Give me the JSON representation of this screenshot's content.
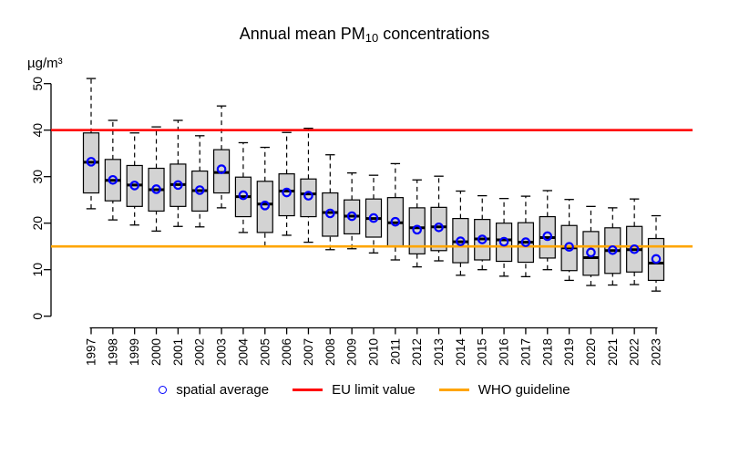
{
  "title": {
    "prefix": "Annual mean PM",
    "subscript": "10",
    "suffix": " concentrations"
  },
  "y_axis": {
    "unit_label": "µg/m³",
    "ticks": [
      0,
      10,
      20,
      30,
      40,
      50
    ],
    "range": [
      0,
      50
    ]
  },
  "x_axis": {
    "years": [
      "1997",
      "1998",
      "1999",
      "2000",
      "2001",
      "2002",
      "2003",
      "2004",
      "2005",
      "2006",
      "2007",
      "2008",
      "2009",
      "2010",
      "2011",
      "2012",
      "2013",
      "2014",
      "2015",
      "2016",
      "2017",
      "2018",
      "2019",
      "2020",
      "2021",
      "2022",
      "2023"
    ]
  },
  "legend": {
    "items": [
      {
        "label": "spatial average",
        "symbol": "open-circle",
        "color": "#0000ff"
      },
      {
        "label": "EU limit value",
        "symbol": "line",
        "color": "#ff0000"
      },
      {
        "label": "WHO guideline",
        "symbol": "line",
        "color": "#ffa500"
      }
    ]
  },
  "colors": {
    "box_fill": "#d3d3d3",
    "box_border": "#000000",
    "median_line": "#000000",
    "whisker": "#000000",
    "mean_marker": "#0000ff",
    "eu_limit_line": "#ff0000",
    "who_guideline_line": "#ffa500",
    "axis": "#000000",
    "background": "#ffffff"
  },
  "chart_data": {
    "type": "boxplot",
    "title": "Annual mean PM10 concentrations",
    "ylabel": "µg/m³",
    "ylim": [
      0,
      50
    ],
    "y_ticks": [
      0,
      10,
      20,
      30,
      40,
      50
    ],
    "grid": false,
    "legend_position": "bottom",
    "categories": [
      "1997",
      "1998",
      "1999",
      "2000",
      "2001",
      "2002",
      "2003",
      "2004",
      "2005",
      "2006",
      "2007",
      "2008",
      "2009",
      "2010",
      "2011",
      "2012",
      "2013",
      "2014",
      "2015",
      "2016",
      "2017",
      "2018",
      "2019",
      "2020",
      "2021",
      "2022",
      "2023"
    ],
    "reference_lines": [
      {
        "name": "EU limit value",
        "value": 40,
        "color": "#ff0000"
      },
      {
        "name": "WHO guideline",
        "value": 15,
        "color": "#ffa500"
      }
    ],
    "boxes": [
      {
        "year": "1997",
        "whisker_low": 23.1,
        "q1": 26.5,
        "median": 33.1,
        "q3": 39.4,
        "whisker_high": 51.1,
        "spatial_average": 33.2
      },
      {
        "year": "1998",
        "whisker_low": 20.7,
        "q1": 24.8,
        "median": 29.2,
        "q3": 33.7,
        "whisker_high": 42.1,
        "spatial_average": 29.3
      },
      {
        "year": "1999",
        "whisker_low": 19.6,
        "q1": 23.6,
        "median": 28.2,
        "q3": 32.4,
        "whisker_high": 39.4,
        "spatial_average": 28.1
      },
      {
        "year": "2000",
        "whisker_low": 18.3,
        "q1": 22.6,
        "median": 27.2,
        "q3": 31.8,
        "whisker_high": 40.7,
        "spatial_average": 27.3
      },
      {
        "year": "2001",
        "whisker_low": 19.3,
        "q1": 23.6,
        "median": 28.3,
        "q3": 32.7,
        "whisker_high": 42.1,
        "spatial_average": 28.2
      },
      {
        "year": "2002",
        "whisker_low": 19.2,
        "q1": 22.6,
        "median": 27.0,
        "q3": 31.2,
        "whisker_high": 38.8,
        "spatial_average": 27.1
      },
      {
        "year": "2003",
        "whisker_low": 23.3,
        "q1": 26.5,
        "median": 30.9,
        "q3": 35.8,
        "whisker_high": 45.2,
        "spatial_average": 31.6
      },
      {
        "year": "2004",
        "whisker_low": 18.0,
        "q1": 21.4,
        "median": 25.7,
        "q3": 29.9,
        "whisker_high": 37.3,
        "spatial_average": 26.0
      },
      {
        "year": "2005",
        "whisker_low": 15.1,
        "q1": 18.0,
        "median": 24.1,
        "q3": 29.0,
        "whisker_high": 36.3,
        "spatial_average": 23.8
      },
      {
        "year": "2006",
        "whisker_low": 17.4,
        "q1": 21.6,
        "median": 26.9,
        "q3": 30.6,
        "whisker_high": 39.5,
        "spatial_average": 26.6
      },
      {
        "year": "2007",
        "whisker_low": 15.9,
        "q1": 21.4,
        "median": 26.3,
        "q3": 29.5,
        "whisker_high": 40.4,
        "spatial_average": 25.9
      },
      {
        "year": "2008",
        "whisker_low": 14.3,
        "q1": 17.2,
        "median": 22.3,
        "q3": 26.5,
        "whisker_high": 34.7,
        "spatial_average": 22.1
      },
      {
        "year": "2009",
        "whisker_low": 14.5,
        "q1": 17.7,
        "median": 21.5,
        "q3": 25.0,
        "whisker_high": 30.8,
        "spatial_average": 21.5
      },
      {
        "year": "2010",
        "whisker_low": 13.6,
        "q1": 17.0,
        "median": 21.0,
        "q3": 25.2,
        "whisker_high": 30.3,
        "spatial_average": 21.1
      },
      {
        "year": "2011",
        "whisker_low": 12.1,
        "q1": 15.1,
        "median": 20.1,
        "q3": 25.5,
        "whisker_high": 32.8,
        "spatial_average": 20.3
      },
      {
        "year": "2012",
        "whisker_low": 10.6,
        "q1": 13.4,
        "median": 19.0,
        "q3": 23.3,
        "whisker_high": 29.3,
        "spatial_average": 18.6
      },
      {
        "year": "2013",
        "whisker_low": 11.9,
        "q1": 14.1,
        "median": 19.2,
        "q3": 23.4,
        "whisker_high": 30.1,
        "spatial_average": 19.1
      },
      {
        "year": "2014",
        "whisker_low": 8.8,
        "q1": 11.5,
        "median": 16.0,
        "q3": 21.0,
        "whisker_high": 26.9,
        "spatial_average": 16.1
      },
      {
        "year": "2015",
        "whisker_low": 10.0,
        "q1": 12.1,
        "median": 16.6,
        "q3": 20.8,
        "whisker_high": 25.9,
        "spatial_average": 16.5
      },
      {
        "year": "2016",
        "whisker_low": 8.6,
        "q1": 11.8,
        "median": 16.4,
        "q3": 20.0,
        "whisker_high": 25.3,
        "spatial_average": 16.0
      },
      {
        "year": "2017",
        "whisker_low": 8.5,
        "q1": 11.6,
        "median": 15.9,
        "q3": 20.1,
        "whisker_high": 25.8,
        "spatial_average": 15.9
      },
      {
        "year": "2018",
        "whisker_low": 10.0,
        "q1": 12.5,
        "median": 16.9,
        "q3": 21.4,
        "whisker_high": 27.0,
        "spatial_average": 17.2
      },
      {
        "year": "2019",
        "whisker_low": 7.7,
        "q1": 9.8,
        "median": 14.7,
        "q3": 19.5,
        "whisker_high": 25.1,
        "spatial_average": 14.9
      },
      {
        "year": "2020",
        "whisker_low": 6.6,
        "q1": 8.8,
        "median": 12.6,
        "q3": 18.2,
        "whisker_high": 23.6,
        "spatial_average": 13.7
      },
      {
        "year": "2021",
        "whisker_low": 6.7,
        "q1": 9.2,
        "median": 14.1,
        "q3": 19.0,
        "whisker_high": 23.3,
        "spatial_average": 14.2
      },
      {
        "year": "2022",
        "whisker_low": 6.8,
        "q1": 9.5,
        "median": 14.3,
        "q3": 19.3,
        "whisker_high": 25.2,
        "spatial_average": 14.4
      },
      {
        "year": "2023",
        "whisker_low": 5.4,
        "q1": 7.7,
        "median": 11.4,
        "q3": 16.7,
        "whisker_high": 21.6,
        "spatial_average": 12.3
      }
    ]
  }
}
